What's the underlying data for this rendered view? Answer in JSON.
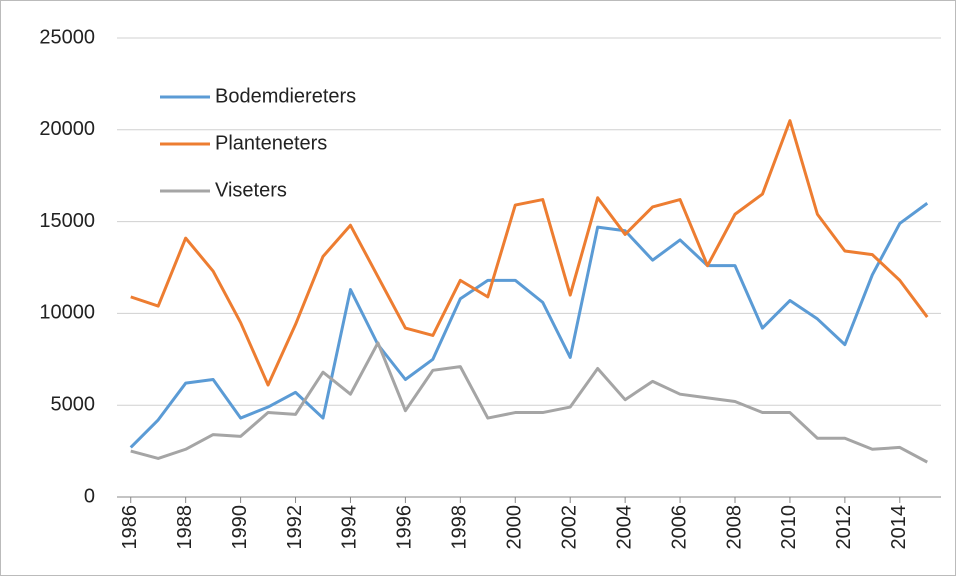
{
  "chart_data": {
    "type": "line",
    "x": [
      1986,
      1987,
      1988,
      1989,
      1990,
      1991,
      1992,
      1993,
      1994,
      1995,
      1996,
      1997,
      1998,
      1999,
      2000,
      2001,
      2002,
      2003,
      2004,
      2005,
      2006,
      2007,
      2008,
      2009,
      2010,
      2011,
      2012,
      2013,
      2014,
      2015
    ],
    "series": [
      {
        "name": "Bodemdiereters",
        "color": "#5b9bd5",
        "values": [
          2700,
          4200,
          6200,
          6400,
          4300,
          4900,
          5700,
          4300,
          11300,
          8300,
          6400,
          7500,
          10800,
          11800,
          11800,
          10600,
          7600,
          14700,
          14500,
          12900,
          14000,
          12600,
          12600,
          9200,
          10700,
          9700,
          8300,
          12100,
          14900,
          16000
        ]
      },
      {
        "name": "Planteneters",
        "color": "#ed7d31",
        "values": [
          10900,
          10400,
          14100,
          12300,
          9500,
          6100,
          9400,
          13100,
          14800,
          12000,
          9200,
          8800,
          11800,
          10900,
          15900,
          16200,
          11000,
          16300,
          14300,
          15800,
          16200,
          12600,
          15400,
          16500,
          20500,
          15400,
          13400,
          13200,
          11800,
          9800
        ]
      },
      {
        "name": "Viseters",
        "color": "#a5a5a5",
        "values": [
          2500,
          2100,
          2600,
          3400,
          3300,
          4600,
          4500,
          6800,
          5600,
          8400,
          4700,
          6900,
          7100,
          4300,
          4600,
          4600,
          4900,
          7000,
          5300,
          6300,
          5600,
          5400,
          5200,
          4600,
          4600,
          3200,
          3200,
          2600,
          2700,
          1900
        ]
      }
    ],
    "xlim": [
      1985.5,
      2015.5
    ],
    "xticks": [
      1986,
      1988,
      1990,
      1992,
      1994,
      1996,
      1998,
      2000,
      2002,
      2004,
      2006,
      2008,
      2010,
      2012,
      2014
    ],
    "ylim": [
      0,
      25000
    ],
    "yticks": [
      0,
      5000,
      10000,
      15000,
      20000,
      25000
    ],
    "grid": true,
    "legend": "top-left"
  }
}
